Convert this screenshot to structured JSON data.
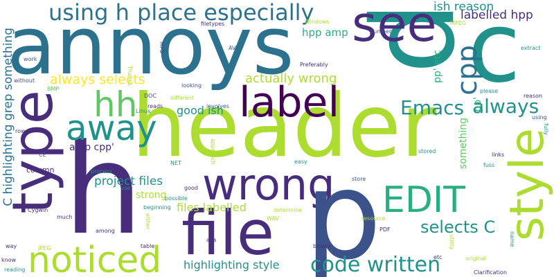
{
  "palette": {
    "purple": "#440154",
    "indigo": "#472d7b",
    "navy": "#3b528b",
    "blue": "#2c728e",
    "teal": "#21918c",
    "green": "#28ae80",
    "lime": "#5ec962",
    "yellowgreen": "#addc30",
    "yellow": "#fde725",
    "background": "#ffffff"
  },
  "words": [
    {
      "text": "header",
      "color": "yellowgreen"
    },
    {
      "text": "annoys",
      "color": "blue"
    },
    {
      "text": "p",
      "color": "teal"
    },
    {
      "text": "h",
      "color": "indigo"
    },
    {
      "text": "c",
      "color": "teal"
    },
    {
      "text": "type",
      "color": "indigo"
    },
    {
      "text": "file",
      "color": "indigo"
    },
    {
      "text": "style",
      "color": "yellowgreen"
    },
    {
      "text": "wrong",
      "color": "indigo"
    },
    {
      "text": "noticed",
      "color": "yellowgreen"
    },
    {
      "text": "see",
      "color": "indigo"
    },
    {
      "text": "p",
      "color": "navy"
    },
    {
      "text": "label",
      "color": "purple"
    },
    {
      "text": "away",
      "color": "teal"
    },
    {
      "text": "hh",
      "color": "lime"
    },
    {
      "text": "EDIT",
      "color": "green"
    },
    {
      "text": "place especially",
      "color": "blue"
    },
    {
      "text": "using h",
      "color": "blue"
    },
    {
      "text": "code written",
      "color": "teal"
    },
    {
      "text": "cpp",
      "color": "blue"
    },
    {
      "text": "Emacs",
      "color": "teal"
    },
    {
      "text": "always",
      "color": "teal"
    },
    {
      "text": "selects C",
      "color": "teal"
    },
    {
      "text": "always selects",
      "color": "yellow"
    },
    {
      "text": "C highlighting grep something",
      "color": "blue"
    },
    {
      "text": "actually wrong",
      "color": "yellowgreen"
    },
    {
      "text": "ish reason",
      "color": "teal"
    },
    {
      "text": "labelled hpp",
      "color": "indigo"
    },
    {
      "text": "project files",
      "color": "teal"
    },
    {
      "text": "files labelled",
      "color": "yellowgreen"
    },
    {
      "text": "highlighting style",
      "color": "teal"
    },
    {
      "text": "good ish",
      "color": "teal"
    },
    {
      "text": "amp cpp'",
      "color": "indigo"
    },
    {
      "text": "strong",
      "color": "yellowgreen"
    },
    {
      "text": "hpp amp",
      "color": "green"
    },
    {
      "text": "pp' etc",
      "color": "green"
    },
    {
      "text": "pp'",
      "color": "green"
    },
    {
      "text": "something",
      "color": "lime"
    },
    {
      "text": "column",
      "color": "indigo"
    },
    {
      "text": "filetypes",
      "color": "indigo"
    },
    {
      "text": "Windows",
      "color": "yellowgreen"
    },
    {
      "text": "number",
      "color": "navy"
    },
    {
      "text": "MPEG",
      "color": "yellowgreen"
    },
    {
      "text": "extract",
      "color": "teal"
    },
    {
      "text": "work",
      "color": "navy"
    },
    {
      "text": "MP3",
      "color": "navy"
    },
    {
      "text": "AVI",
      "color": "navy"
    },
    {
      "text": "Preferably",
      "color": "indigo"
    },
    {
      "text": "Thanks",
      "color": "yellowgreen"
    },
    {
      "text": "without",
      "color": "navy"
    },
    {
      "text": "BMP",
      "color": "lime"
    },
    {
      "text": "looking",
      "color": "navy"
    },
    {
      "text": "please",
      "color": "teal"
    },
    {
      "text": "reason",
      "color": "indigo"
    },
    {
      "text": "DOC",
      "color": "navy"
    },
    {
      "text": "different",
      "color": "yellowgreen"
    },
    {
      "text": "reads",
      "color": "indigo"
    },
    {
      "text": "Linux",
      "color": "teal"
    },
    {
      "text": "involves",
      "color": "navy"
    },
    {
      "text": "using",
      "color": "navy"
    },
    {
      "text": "fully",
      "color": "teal"
    },
    {
      "text": "rows",
      "color": "indigo"
    },
    {
      "text": "CE",
      "color": "navy"
    },
    {
      "text": "approach",
      "color": "yellowgreen"
    },
    {
      "text": "stored",
      "color": "teal"
    },
    {
      "text": "links",
      "color": "indigo"
    },
    {
      "text": "NET",
      "color": "teal"
    },
    {
      "text": "easy",
      "color": "teal"
    },
    {
      "text": "fuss",
      "color": "teal"
    },
    {
      "text": "process",
      "color": "teal"
    },
    {
      "text": "store",
      "color": "navy"
    },
    {
      "text": "use",
      "color": "teal"
    },
    {
      "text": "good",
      "color": "indigo"
    },
    {
      "text": "possible",
      "color": "teal"
    },
    {
      "text": "beginning",
      "color": "teal"
    },
    {
      "text": "determine",
      "color": "yellowgreen"
    },
    {
      "text": "Cygwin",
      "color": "indigo"
    },
    {
      "text": "much",
      "color": "indigo"
    },
    {
      "text": "either",
      "color": "yellowgreen"
    },
    {
      "text": "WAV",
      "color": "yellowgreen"
    },
    {
      "text": "resource",
      "color": "yellowgreen"
    },
    {
      "text": "PDF",
      "color": "indigo"
    },
    {
      "text": "among",
      "color": "indigo"
    },
    {
      "text": "aka",
      "color": "indigo"
    },
    {
      "text": "binary",
      "color": "indigo"
    },
    {
      "text": "way",
      "color": "indigo"
    },
    {
      "text": "JPEG",
      "color": "yellowgreen"
    },
    {
      "text": "table",
      "color": "indigo"
    },
    {
      "text": "utility",
      "color": "yellowgreen"
    },
    {
      "text": "name",
      "color": "teal"
    },
    {
      "text": "know",
      "color": "indigo"
    },
    {
      "text": "reading",
      "color": "teal"
    },
    {
      "text": "etc",
      "color": "indigo"
    },
    {
      "text": "original",
      "color": "yellowgreen"
    },
    {
      "text": "Clarification",
      "color": "indigo"
    }
  ]
}
